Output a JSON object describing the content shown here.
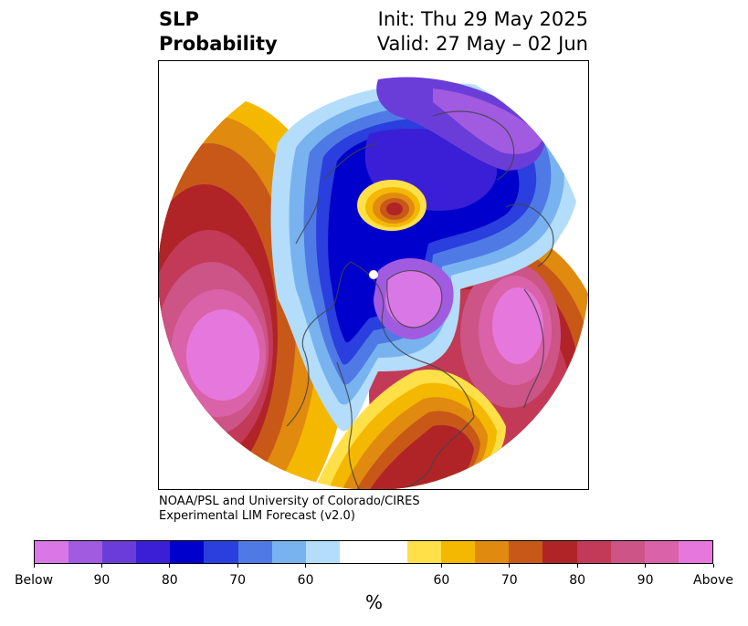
{
  "title": {
    "left_line1": "SLP",
    "left_line2": "Probability",
    "right_line1": "Init: Thu 29 May 2025",
    "right_line2": "Valid: 27 May – 02 Jun"
  },
  "credit": {
    "line1": "NOAA/PSL and University of Colorado/CIRES",
    "line2": "Experimental LIM Forecast (v2.0)"
  },
  "colorbar": {
    "colors": [
      "#d977e6",
      "#a05be0",
      "#6b3dd8",
      "#3a1fd6",
      "#0000cc",
      "#2a3fdd",
      "#4f7ae6",
      "#78b3f0",
      "#b3ddfa",
      "#ffffff",
      "#ffffff",
      "#ffe048",
      "#f4b800",
      "#e08a10",
      "#c85818",
      "#b02428",
      "#c23a58",
      "#cc5486",
      "#da62a8",
      "#e677dc"
    ],
    "tick_labels": [
      "Below",
      "90",
      "80",
      "70",
      "60",
      "60",
      "70",
      "80",
      "90",
      "Above"
    ],
    "unit": "%"
  },
  "map": {
    "projection": "north-polar-stereographic",
    "regions": [
      {
        "name": "north-pacific-high",
        "category": "Above"
      },
      {
        "name": "north-atlantic-high",
        "category": "Above"
      },
      {
        "name": "eastern-us-high",
        "category": "80"
      },
      {
        "name": "greenland-low",
        "category": "Below"
      },
      {
        "name": "arctic-eurasia-low",
        "category": "Below"
      },
      {
        "name": "siberia-high-center",
        "category": "80"
      }
    ]
  }
}
